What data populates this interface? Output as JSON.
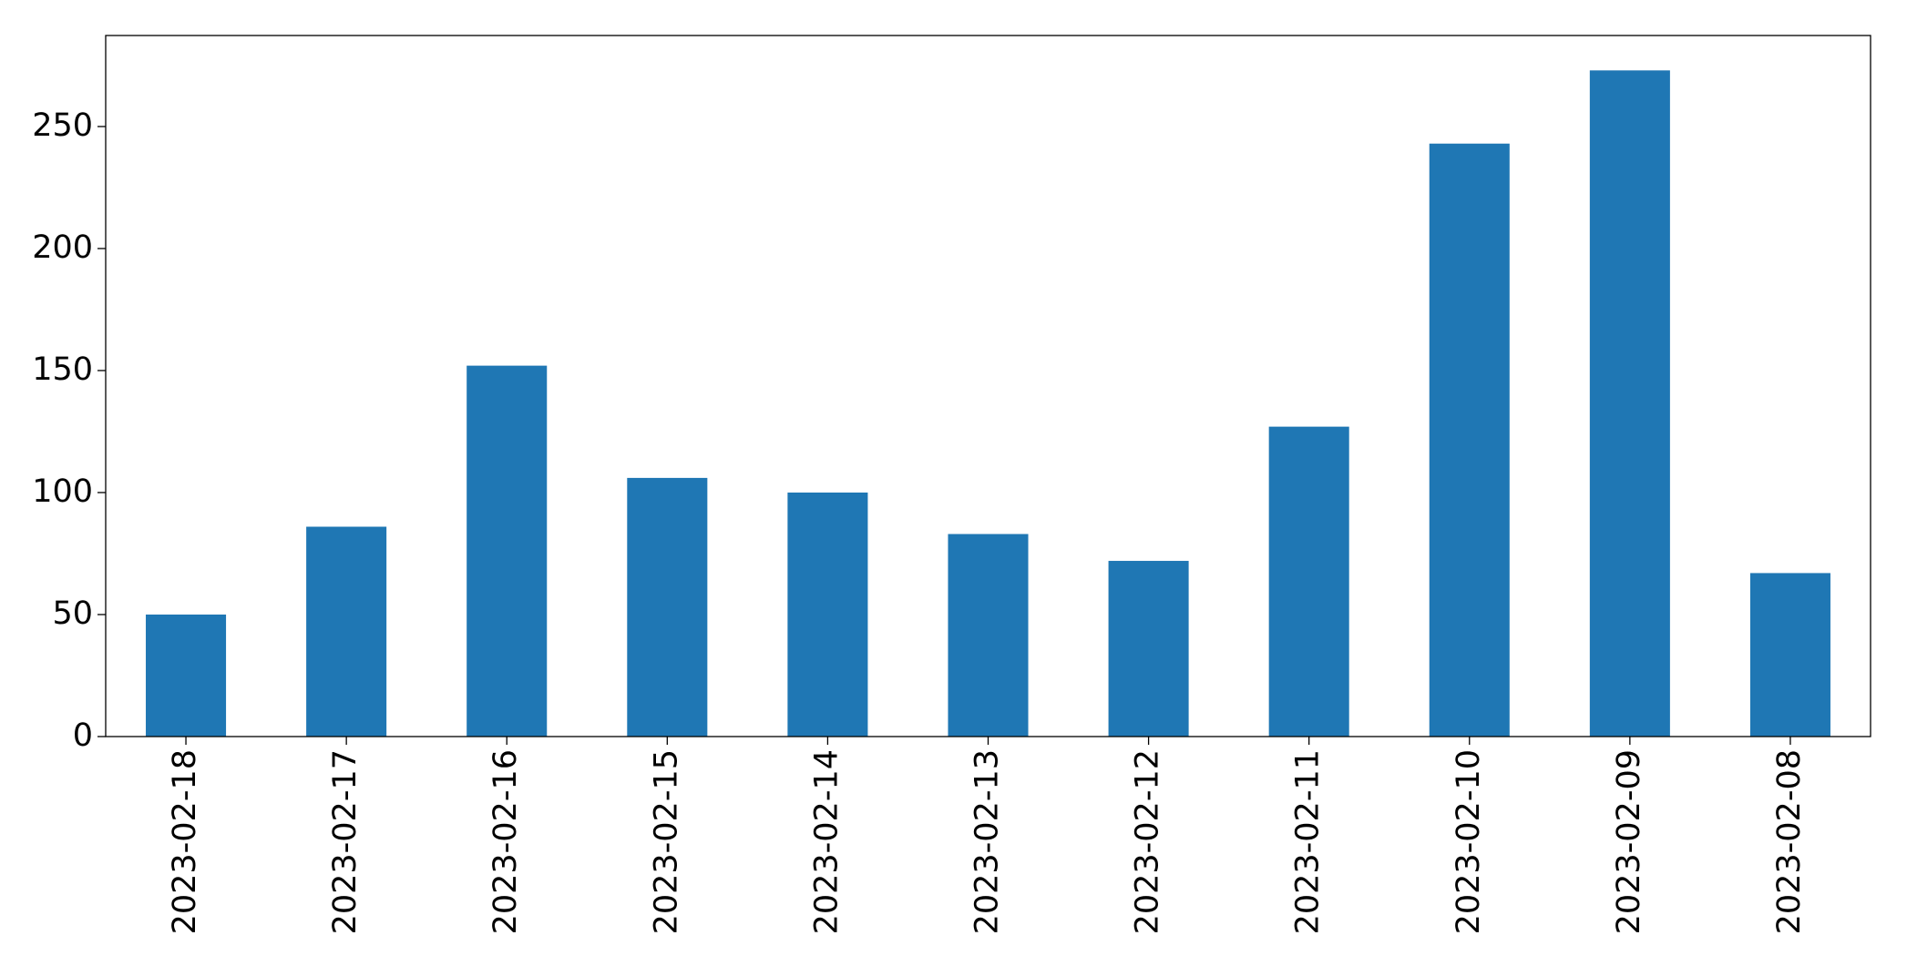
{
  "chart_data": {
    "type": "bar",
    "categories": [
      "2023-02-18",
      "2023-02-17",
      "2023-02-16",
      "2023-02-15",
      "2023-02-14",
      "2023-02-13",
      "2023-02-12",
      "2023-02-11",
      "2023-02-10",
      "2023-02-09",
      "2023-02-08"
    ],
    "values": [
      50,
      86,
      152,
      106,
      100,
      83,
      72,
      127,
      243,
      273,
      67
    ],
    "color": "#1f77b4",
    "ylim": [
      0,
      287.3
    ],
    "yticks": [
      0,
      50,
      100,
      150,
      200,
      250
    ],
    "grid": false
  }
}
